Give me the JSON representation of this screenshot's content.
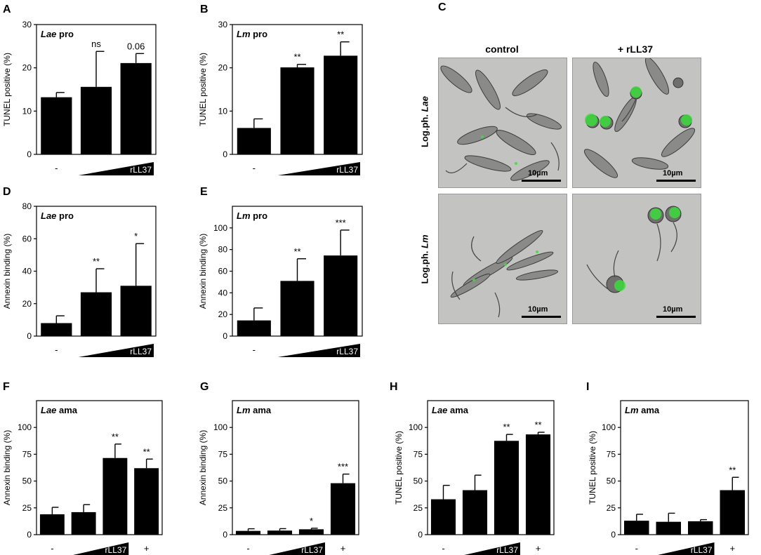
{
  "chart_data": [
    {
      "panel": "A",
      "type": "bar",
      "title_species": "Lae",
      "title_stage": "pro",
      "ylabel": "TUNEL positive (%)",
      "ylim": [
        0,
        30
      ],
      "yticks": [
        0,
        10,
        20,
        30
      ],
      "categories": [
        "-",
        "low",
        "high"
      ],
      "values": [
        13.2,
        15.6,
        21.1
      ],
      "errors": [
        1.1,
        8.2,
        2.2
      ],
      "annotations": [
        "",
        "ns",
        "0.06"
      ],
      "cat_label": "-",
      "ramp_label": "rLL37",
      "ramp_cats": 2,
      "has_plus": false
    },
    {
      "panel": "B",
      "type": "bar",
      "title_species": "Lm",
      "title_stage": "pro",
      "ylabel": "TUNEL positive (%)",
      "ylim": [
        0,
        30
      ],
      "yticks": [
        0,
        10,
        20,
        30
      ],
      "categories": [
        "-",
        "low",
        "high"
      ],
      "values": [
        6.1,
        20.1,
        22.8
      ],
      "errors": [
        2.1,
        0.7,
        3.2
      ],
      "annotations": [
        "",
        "**",
        "**"
      ],
      "cat_label": "-",
      "ramp_label": "rLL37",
      "ramp_cats": 2,
      "has_plus": false
    },
    {
      "panel": "D",
      "type": "bar",
      "title_species": "Lae",
      "title_stage": "pro",
      "ylabel": "Annexin binding (%)",
      "ylim": [
        0,
        80
      ],
      "yticks": [
        0,
        20,
        40,
        60,
        80
      ],
      "categories": [
        "-",
        "low",
        "high"
      ],
      "values": [
        8,
        27,
        31
      ],
      "errors": [
        4.5,
        14.5,
        26
      ],
      "annotations": [
        "",
        "**",
        "*"
      ],
      "cat_label": "-",
      "ramp_label": "rLL37",
      "ramp_cats": 2,
      "has_plus": false
    },
    {
      "panel": "E",
      "type": "bar",
      "title_species": "Lm",
      "title_stage": "pro",
      "ylabel": "Annexin binding (%)",
      "ylim": [
        0,
        120
      ],
      "yticks": [
        0,
        20,
        40,
        60,
        80,
        100
      ],
      "categories": [
        "-",
        "low",
        "high"
      ],
      "values": [
        14.5,
        51,
        74.5
      ],
      "errors": [
        11.5,
        20.5,
        23.5
      ],
      "annotations": [
        "",
        "**",
        "***"
      ],
      "cat_label": "-",
      "ramp_label": "rLL37",
      "ramp_cats": 2,
      "has_plus": false
    },
    {
      "panel": "F",
      "type": "bar",
      "title_species": "Lae",
      "title_stage": "ama",
      "ylabel": "Annexin binding (%)",
      "ylim": [
        0,
        125
      ],
      "yticks": [
        0,
        25,
        50,
        75,
        100
      ],
      "categories": [
        "-",
        "low",
        "high",
        "+"
      ],
      "values": [
        19,
        21,
        71.5,
        62
      ],
      "errors": [
        6.5,
        7,
        13,
        8.5
      ],
      "annotations": [
        "",
        "",
        "**",
        "**"
      ],
      "cat_label": "-",
      "ramp_label": "rLL37",
      "ramp_cats": 2,
      "has_plus": true,
      "plus_label": "+"
    },
    {
      "panel": "G",
      "type": "bar",
      "title_species": "Lm",
      "title_stage": "ama",
      "ylabel": "Annexin binding (%)",
      "ylim": [
        0,
        125
      ],
      "yticks": [
        0,
        25,
        50,
        75,
        100
      ],
      "categories": [
        "-",
        "low",
        "high",
        "+"
      ],
      "values": [
        3.5,
        3.8,
        5,
        48
      ],
      "errors": [
        2,
        1.8,
        1,
        8.5
      ],
      "annotations": [
        "",
        "",
        "*",
        "***"
      ],
      "cat_label": "-",
      "ramp_label": "rLL37",
      "ramp_cats": 2,
      "has_plus": true,
      "plus_label": "+"
    },
    {
      "panel": "H",
      "type": "bar",
      "title_species": "Lae",
      "title_stage": "ama",
      "ylabel": "TUNEL positive (%)",
      "ylim": [
        0,
        125
      ],
      "yticks": [
        0,
        25,
        50,
        75,
        100
      ],
      "categories": [
        "-",
        "low",
        "high",
        "+"
      ],
      "values": [
        33,
        41.5,
        87.5,
        93.5
      ],
      "errors": [
        13,
        14,
        6,
        2
      ],
      "annotations": [
        "",
        "",
        "**",
        "**"
      ],
      "cat_label": "-",
      "ramp_label": "rLL37",
      "ramp_cats": 2,
      "has_plus": true,
      "plus_label": "+"
    },
    {
      "panel": "I",
      "type": "bar",
      "title_species": "Lm",
      "title_stage": "ama",
      "ylabel": "TUNEL positive (%)",
      "ylim": [
        0,
        125
      ],
      "yticks": [
        0,
        25,
        50,
        75,
        100
      ],
      "categories": [
        "-",
        "low",
        "high",
        "+"
      ],
      "values": [
        13,
        12,
        12.5,
        41.5
      ],
      "errors": [
        6,
        8,
        1.5,
        12
      ],
      "annotations": [
        "",
        "",
        "",
        "**"
      ],
      "cat_label": "-",
      "ramp_label": "rLL37",
      "ramp_cats": 2,
      "has_plus": true,
      "plus_label": "+"
    }
  ],
  "panel_c": {
    "tag": "C",
    "col_labels": [
      "control",
      "+ rLL37"
    ],
    "row_labels": [
      [
        "Log.ph. ",
        "Lae"
      ],
      [
        "Log.ph. ",
        "Lm"
      ]
    ],
    "scale_label": "10µm",
    "fluorescence_color": "#3ddc3d"
  }
}
